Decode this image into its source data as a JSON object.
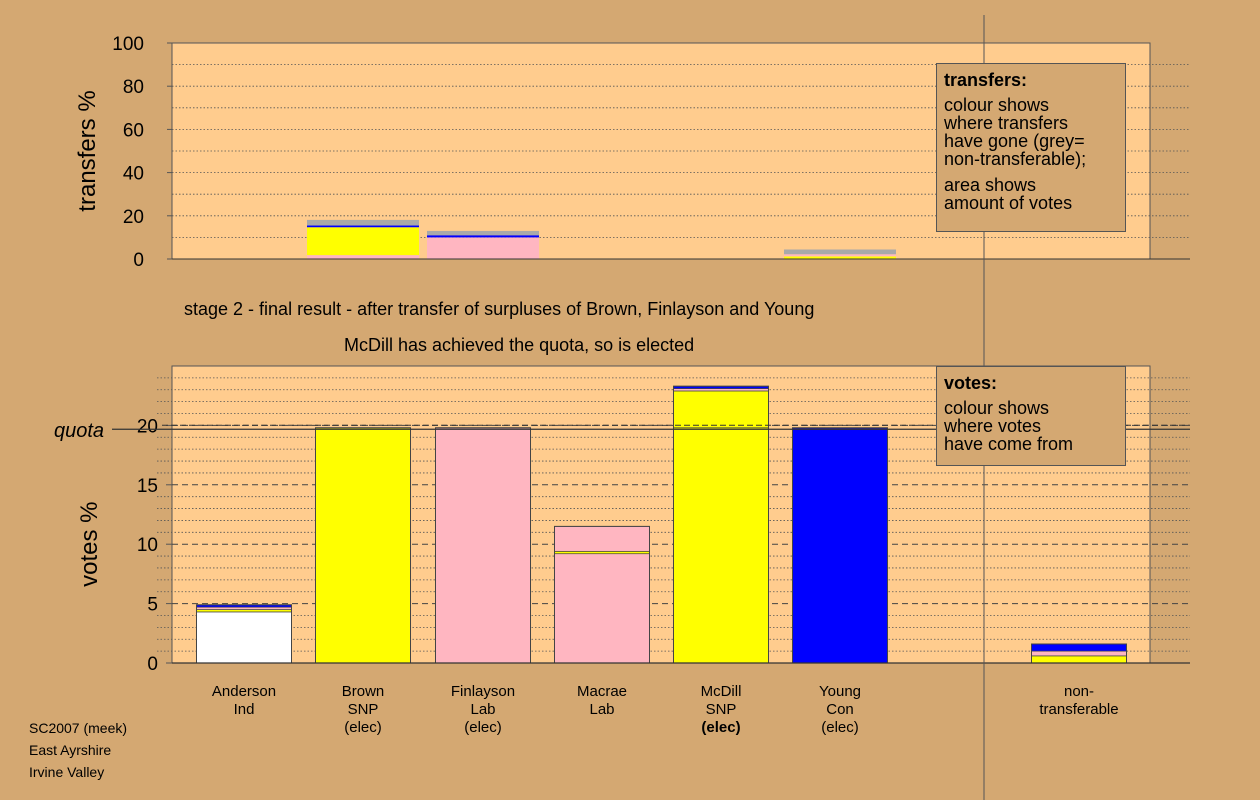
{
  "chart_data": {
    "type": "bar",
    "stage_text": "stage 2 - final result - after transfer of surpluses of Brown, Finlayson and Young",
    "result_text": "McDill has achieved the quota, so is elected",
    "transfers_panel": {
      "ylabel": "transfers %",
      "ylim": [
        0,
        100
      ],
      "yticks": [
        "0",
        "20",
        "40",
        "60",
        "80",
        "100"
      ],
      "bars": [
        {
          "candidate": "Brown",
          "segments": [
            {
              "value": 1.8,
              "color": "#FFB6C1"
            },
            {
              "value": 12.9,
              "color": "#FFFF00"
            },
            {
              "value": 0.8,
              "color": "#0000FF"
            },
            {
              "value": 2.6,
              "color": "#A9A9A9"
            }
          ]
        },
        {
          "candidate": "Finlayson",
          "segments": [
            {
              "value": 10.0,
              "color": "#FFB6C1"
            },
            {
              "value": 1.0,
              "color": "#0000FF"
            },
            {
              "value": 2.0,
              "color": "#A9A9A9"
            }
          ]
        },
        {
          "candidate": "Young",
          "segments": [
            {
              "value": 1.2,
              "color": "#FFFF00"
            },
            {
              "value": 1.0,
              "color": "#FFB6C1"
            },
            {
              "value": 2.2,
              "color": "#A9A9A9"
            }
          ]
        }
      ],
      "legend": {
        "title": "transfers:",
        "lines1": [
          "colour shows",
          "where transfers",
          "have gone (grey=",
          "non-transferable);"
        ],
        "lines2": [
          "area shows",
          "amount of votes"
        ]
      }
    },
    "votes_panel": {
      "ylabel": "votes %",
      "ylim": [
        0,
        25
      ],
      "yticks": [
        "0",
        "5",
        "10",
        "15",
        "20"
      ],
      "quota": 19.8,
      "quota_label": "quota",
      "categories": [
        {
          "name": "Anderson",
          "party": "Ind",
          "status": ""
        },
        {
          "name": "Brown",
          "party": "SNP",
          "status": "(elec)"
        },
        {
          "name": "Finlayson",
          "party": "Lab",
          "status": "(elec)"
        },
        {
          "name": "Macrae",
          "party": "Lab",
          "status": ""
        },
        {
          "name": "McDill",
          "party": "SNP",
          "status": "(elec)"
        },
        {
          "name": "Young",
          "party": "Con",
          "status": "(elec)"
        },
        {
          "name": "non-",
          "party": "transferable",
          "status": ""
        }
      ],
      "bars": [
        {
          "candidate": "Anderson",
          "segments": [
            {
              "value": 4.3,
              "color": "#FFFFFF"
            },
            {
              "value": 0.2,
              "color": "#FFFF00"
            },
            {
              "value": 0.2,
              "color": "#FFB6C1"
            },
            {
              "value": 0.2,
              "color": "#0000FF"
            }
          ]
        },
        {
          "candidate": "Brown",
          "segments": [
            {
              "value": 19.8,
              "color": "#FFFF00"
            }
          ]
        },
        {
          "candidate": "Finlayson",
          "segments": [
            {
              "value": 19.8,
              "color": "#FFB6C1"
            }
          ]
        },
        {
          "candidate": "Macrae",
          "segments": [
            {
              "value": 9.2,
              "color": "#FFB6C1"
            },
            {
              "value": 0.2,
              "color": "#FFFF00"
            },
            {
              "value": 2.1,
              "color": "#FFB6C1"
            }
          ]
        },
        {
          "candidate": "McDill",
          "segments": [
            {
              "value": 19.8,
              "color": "#FFFF00"
            },
            {
              "value": 3.1,
              "color": "#FFFF00"
            },
            {
              "value": 0.2,
              "color": "#FFB6C1"
            },
            {
              "value": 0.2,
              "color": "#0000FF"
            }
          ]
        },
        {
          "candidate": "Young",
          "segments": [
            {
              "value": 19.8,
              "color": "#0000FF"
            }
          ]
        },
        {
          "candidate": "non-transferable",
          "segments": [
            {
              "value": 0.6,
              "color": "#FFFF00"
            },
            {
              "value": 0.4,
              "color": "#FFB6C1"
            },
            {
              "value": 0.6,
              "color": "#0000FF"
            }
          ]
        }
      ],
      "legend": {
        "title": "votes:",
        "lines": [
          "colour shows",
          "where votes",
          "have come from"
        ]
      }
    },
    "footer": [
      "SC2007 (meek)",
      "East Ayrshire",
      "Irvine Valley"
    ],
    "colors": {
      "background": "#D4A872",
      "plot": "#FFCC8E",
      "SNP": "#FFFF00",
      "Lab": "#FFB6C1",
      "Con": "#0000FF",
      "Ind": "#FFFFFF",
      "nontransferable": "#A9A9A9"
    }
  }
}
